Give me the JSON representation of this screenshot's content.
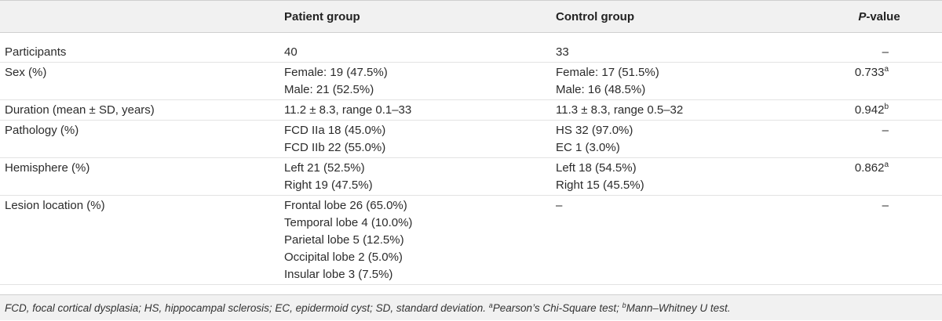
{
  "table": {
    "headers": {
      "col1": "",
      "col2": "Patient group",
      "col3": "Control group",
      "col4_italic": "P",
      "col4_rest": "-value"
    },
    "rows": [
      {
        "label": "Participants",
        "patient": [
          "40"
        ],
        "control": [
          "33"
        ],
        "p_value": "–",
        "p_sup": ""
      },
      {
        "label": "Sex (%)",
        "patient": [
          "Female: 19 (47.5%)",
          "Male: 21 (52.5%)"
        ],
        "control": [
          "Female: 17 (51.5%)",
          "Male: 16 (48.5%)"
        ],
        "p_value": "0.733",
        "p_sup": "a"
      },
      {
        "label": "Duration (mean ± SD, years)",
        "patient": [
          "11.2 ± 8.3, range 0.1–33"
        ],
        "control": [
          "11.3 ± 8.3, range 0.5–32"
        ],
        "p_value": "0.942",
        "p_sup": "b"
      },
      {
        "label": "Pathology (%)",
        "patient": [
          "FCD IIa 18 (45.0%)",
          "FCD IIb 22 (55.0%)"
        ],
        "control": [
          "HS 32 (97.0%)",
          "EC 1 (3.0%)"
        ],
        "p_value": "–",
        "p_sup": ""
      },
      {
        "label": "Hemisphere (%)",
        "patient": [
          "Left 21 (52.5%)",
          "Right 19 (47.5%)"
        ],
        "control": [
          "Left 18 (54.5%)",
          "Right 15 (45.5%)"
        ],
        "p_value": "0.862",
        "p_sup": "a"
      },
      {
        "label": "Lesion location (%)",
        "patient": [
          "Frontal lobe 26 (65.0%)",
          "Temporal lobe 4 (10.0%)",
          "Parietal lobe 5 (12.5%)",
          "Occipital lobe 2 (5.0%)",
          "Insular lobe 3 (7.5%)"
        ],
        "control": [
          "–"
        ],
        "p_value": "–",
        "p_sup": ""
      }
    ]
  },
  "footnote": {
    "text": "FCD, focal cortical dysplasia; HS, hippocampal sclerosis; EC, epidermoid cyst; SD, standard deviation. ",
    "sup_a": "a",
    "note_a": "Pearson’s Chi-Square test; ",
    "sup_b": "b",
    "note_b": "Mann–Whitney U test."
  }
}
